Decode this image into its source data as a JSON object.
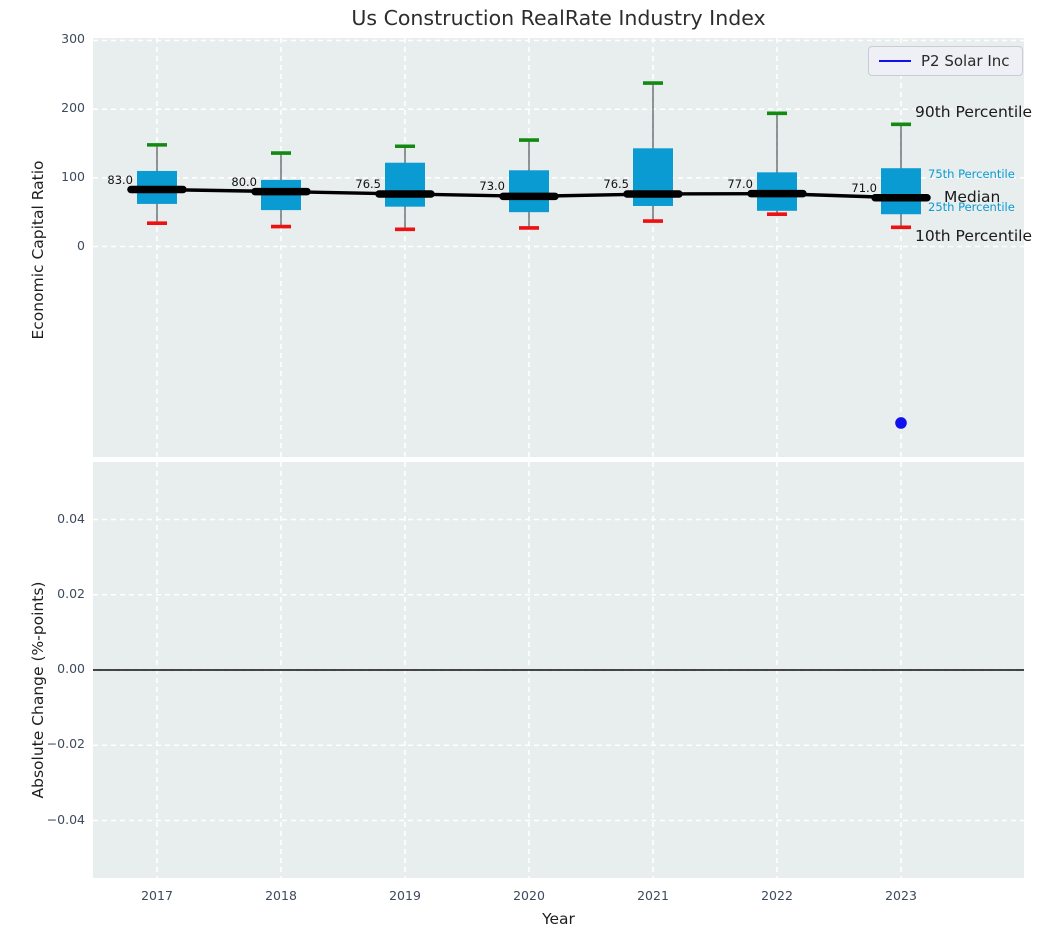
{
  "title": "Us Construction RealRate Industry Index",
  "legend": {
    "label": "P2 Solar Inc",
    "line_color": "#1111ee"
  },
  "annotations": {
    "p90": "90th Percentile",
    "p75": "75th Percentile",
    "median": "Median",
    "p25": "25th Percentile",
    "p10": "10th Percentile"
  },
  "colors": {
    "box_fill": "#0b9bd3",
    "cap_high": "#128a12",
    "cap_low": "#ee1111",
    "whisker": "#5a5f63",
    "median_line": "#000000",
    "point": "#1111ee",
    "grid": "#ffffff",
    "plot_bg": "#e8edee"
  },
  "chart_data": [
    {
      "type": "boxplot",
      "title": "Us Construction RealRate Industry Index",
      "ylabel": "Economic Capital Ratio",
      "ylim": [
        -306,
        300
      ],
      "yticks": [
        0,
        100,
        200,
        300
      ],
      "ytick_labels": [
        "0",
        "100",
        "200",
        "300"
      ],
      "grid": true,
      "legend_position": "upper right",
      "categories": [
        "2017",
        "2018",
        "2019",
        "2020",
        "2021",
        "2022",
        "2023"
      ],
      "series": [
        {
          "name": "whisker_high_90th",
          "values": [
            148,
            136,
            146,
            155,
            238,
            194,
            178
          ]
        },
        {
          "name": "q3_75th",
          "values": [
            110,
            97,
            122,
            111,
            143,
            108,
            114
          ]
        },
        {
          "name": "median",
          "values": [
            83.0,
            80.0,
            76.5,
            73.0,
            76.5,
            77.0,
            71.0
          ]
        },
        {
          "name": "q1_25th",
          "values": [
            62,
            53,
            58,
            50,
            59,
            52,
            47
          ]
        },
        {
          "name": "whisker_low_10th",
          "values": [
            34,
            29,
            25,
            27,
            37,
            47,
            28
          ]
        }
      ],
      "median_labels": [
        "83.0",
        "80.0",
        "76.5",
        "73.0",
        "76.5",
        "77.0",
        "71.0"
      ],
      "point": {
        "name": "P2 Solar Inc",
        "x": "2023",
        "y": -257
      }
    },
    {
      "type": "line",
      "ylabel": "Absolute Change (%-points)",
      "xlabel": "Year",
      "ylim": [
        -0.055,
        0.055
      ],
      "yticks": [
        0.04,
        0.02,
        0.0,
        -0.02,
        -0.04
      ],
      "ytick_labels": [
        "0.04",
        "0.02",
        "0.00",
        "−0.02",
        "−0.04"
      ],
      "grid": true,
      "zero_line": true,
      "categories": [
        "2017",
        "2018",
        "2019",
        "2020",
        "2021",
        "2022",
        "2023"
      ],
      "values": []
    }
  ]
}
